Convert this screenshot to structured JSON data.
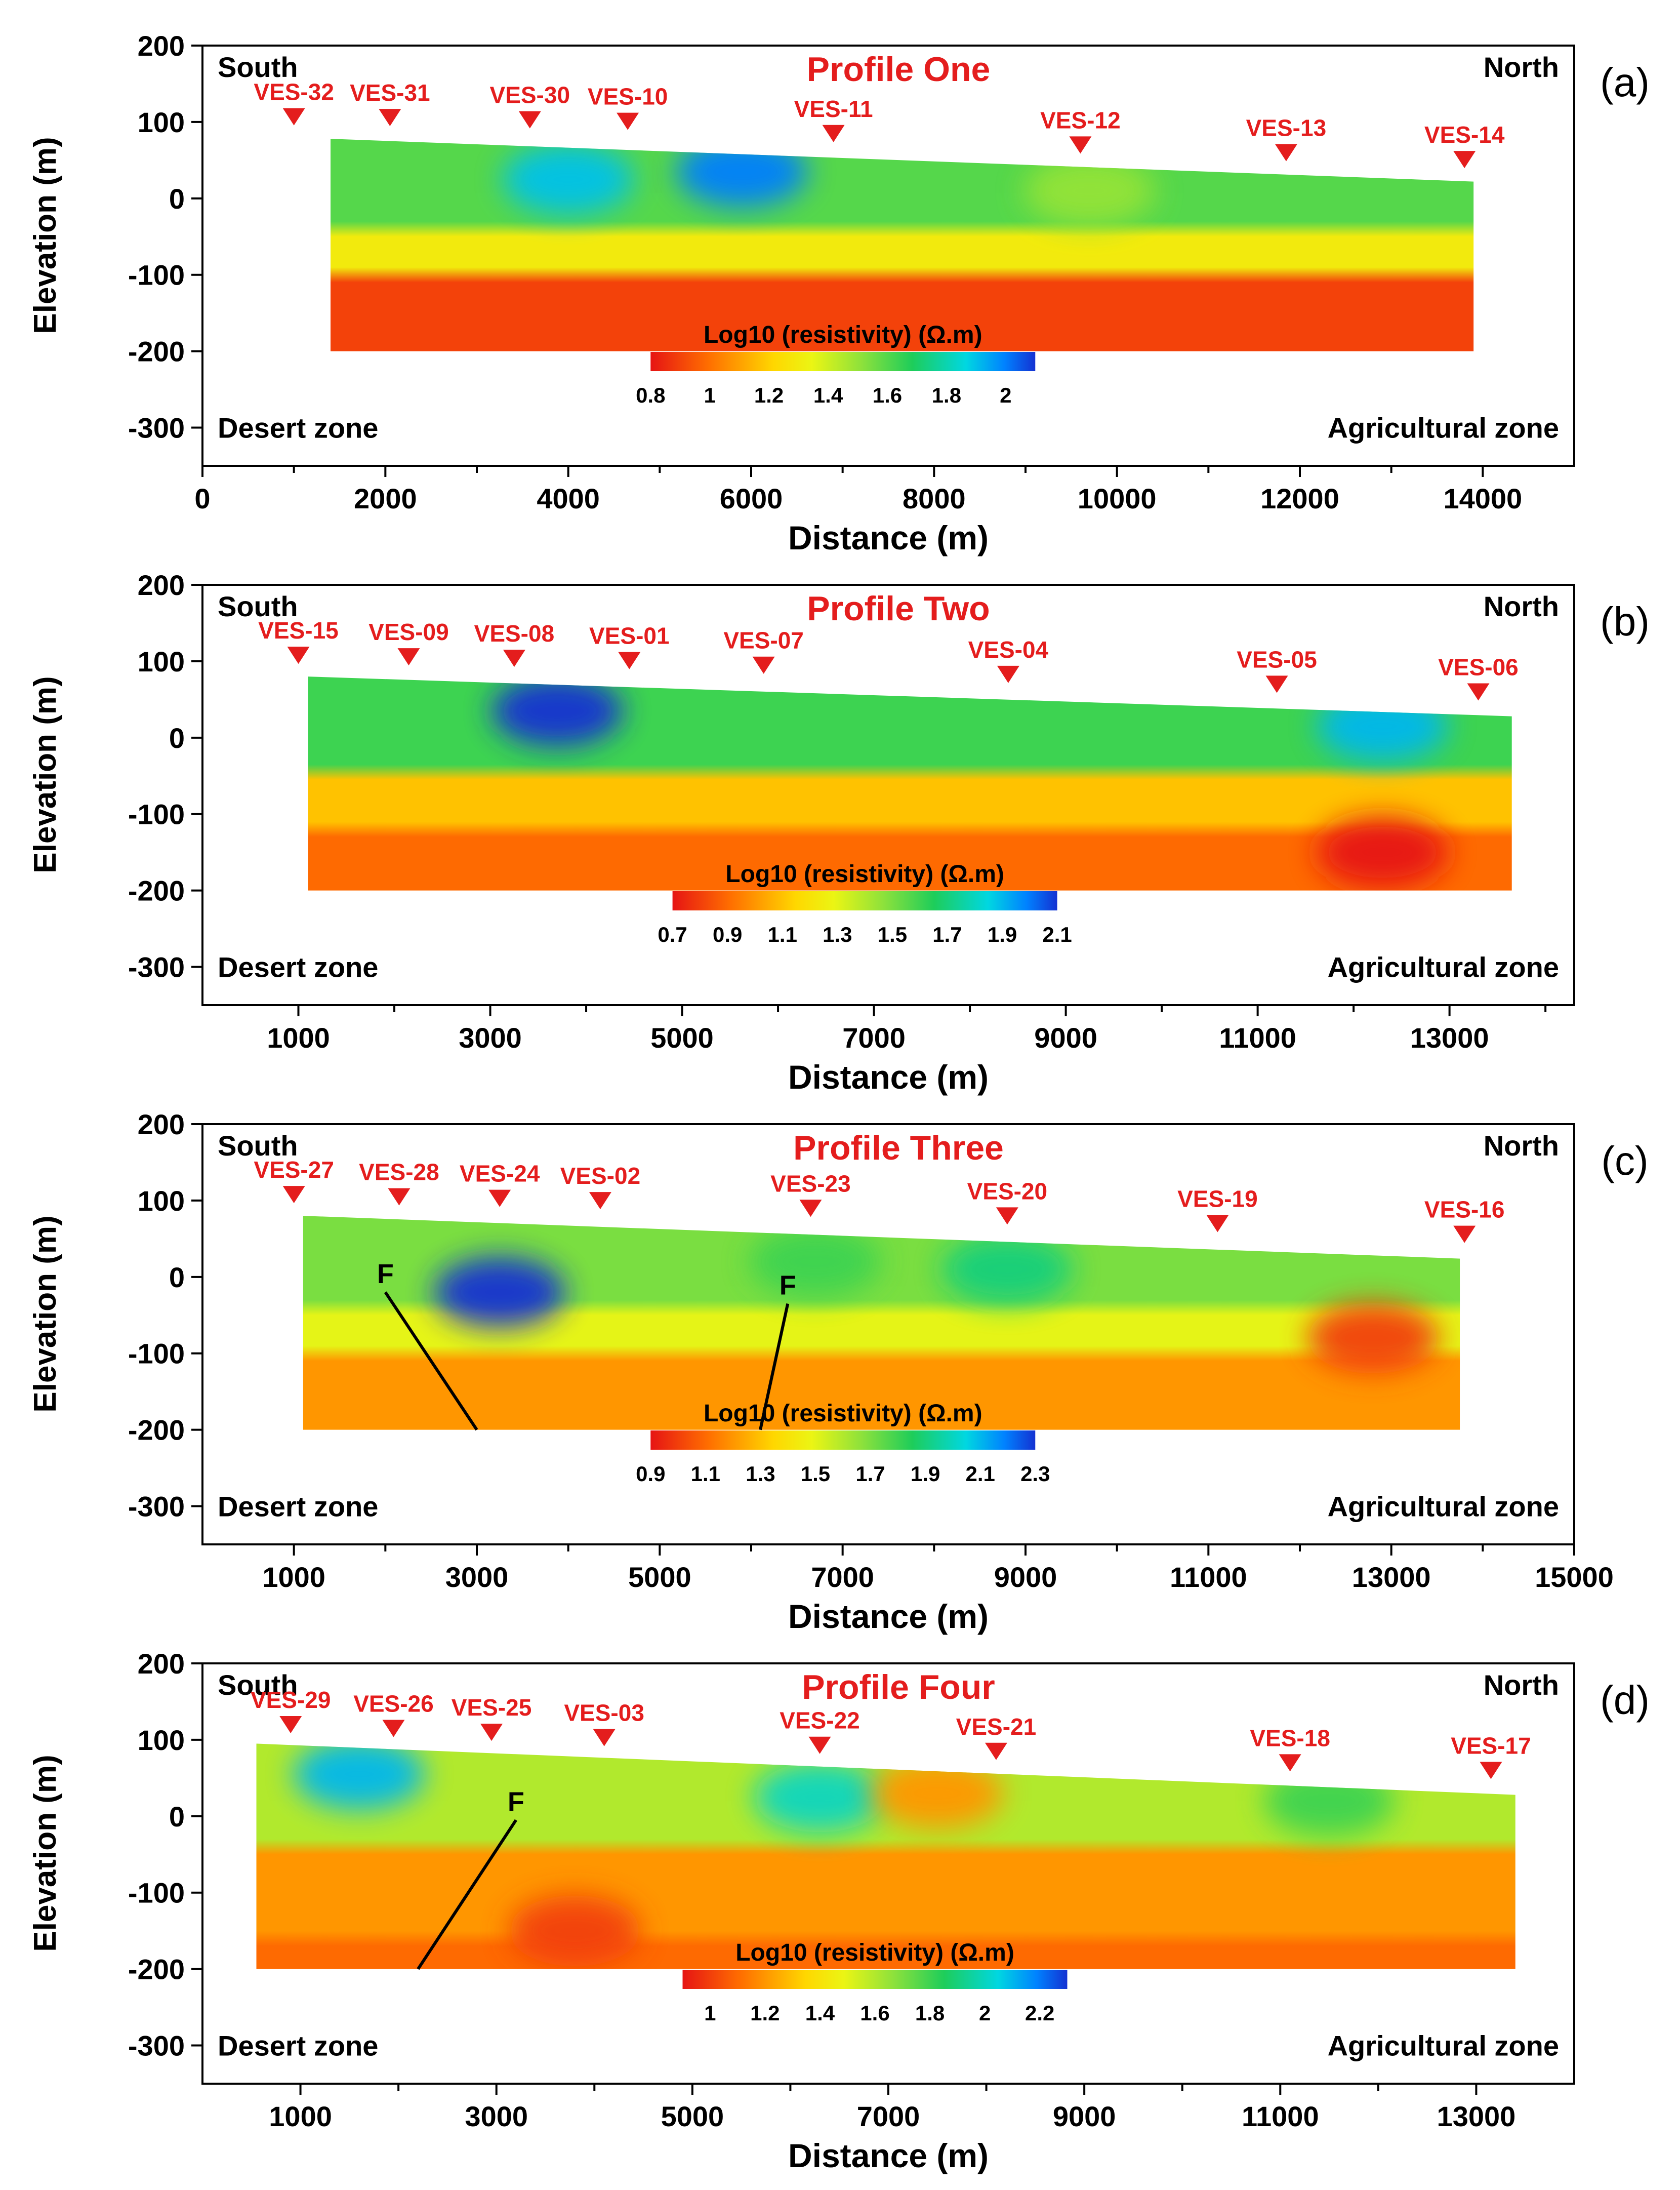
{
  "chart_data": [
    {
      "type": "heatmap",
      "panel_label": "(a)",
      "title": "Profile One",
      "xlabel": "Distance (m)",
      "ylabel": "Elevation (m)",
      "corner_labels": {
        "top_left": "South",
        "top_right": "North",
        "bottom_left": "Desert zone",
        "bottom_right": "Agricultural zone"
      },
      "xlim": [
        0,
        15000
      ],
      "ylim": [
        -350,
        200
      ],
      "x_ticks": [
        0,
        2000,
        4000,
        6000,
        8000,
        10000,
        12000,
        14000
      ],
      "x_tick_labels": [
        "0",
        "2000",
        "4000",
        "6000",
        "8000",
        "10000",
        "12000",
        "14000"
      ],
      "y_ticks": [
        200,
        100,
        0,
        -100,
        -200,
        -300
      ],
      "y_tick_labels": [
        "200",
        "100",
        "0",
        "-100",
        "-200",
        "-300"
      ],
      "section_x_range": [
        1400,
        13900
      ],
      "section_top_start": 78,
      "section_top_end": 22,
      "section_bottom": -200,
      "ves": [
        {
          "name": "VES-32",
          "x": 1000,
          "elev": 79
        },
        {
          "name": "VES-31",
          "x": 2050,
          "elev": 78
        },
        {
          "name": "VES-30",
          "x": 3580,
          "elev": 75
        },
        {
          "name": "VES-10",
          "x": 4650,
          "elev": 73
        },
        {
          "name": "VES-11",
          "x": 6900,
          "elev": 57
        },
        {
          "name": "VES-12",
          "x": 9600,
          "elev": 42
        },
        {
          "name": "VES-13",
          "x": 11850,
          "elev": 32
        },
        {
          "name": "VES-14",
          "x": 13800,
          "elev": 23
        }
      ],
      "layers": [
        {
          "name": "surface",
          "log10_resistivity": 1.6,
          "from": "top",
          "to": -40
        },
        {
          "name": "middle",
          "log10_resistivity": 1.3,
          "from": -40,
          "to": -100
        },
        {
          "name": "deep",
          "log10_resistivity": 0.9,
          "from": -100,
          "to": -200
        }
      ],
      "anomalies": [
        {
          "x": 4000,
          "y": 25,
          "log10_resistivity": 1.9
        },
        {
          "x": 5900,
          "y": 35,
          "log10_resistivity": 2.0
        },
        {
          "x": 9700,
          "y": 10,
          "log10_resistivity": 1.5
        }
      ],
      "faults": [],
      "colorbar": {
        "title": "Log10 (resistivity) (Ω.m)",
        "min": 0.8,
        "max": 2.1,
        "tick_values": [
          0.8,
          1,
          1.2,
          1.4,
          1.6,
          1.8,
          2
        ],
        "tick_labels": [
          "0.8",
          "1",
          "1.2",
          "1.4",
          "1.6",
          "1.8",
          "2"
        ]
      }
    },
    {
      "type": "heatmap",
      "panel_label": "(b)",
      "title": "Profile Two",
      "xlabel": "Distance (m)",
      "ylabel": "Elevation (m)",
      "corner_labels": {
        "top_left": "South",
        "top_right": "North",
        "bottom_left": "Desert zone",
        "bottom_right": "Agricultural zone"
      },
      "xlim": [
        0,
        14300
      ],
      "ylim": [
        -350,
        200
      ],
      "x_ticks": [
        1000,
        3000,
        5000,
        7000,
        9000,
        11000,
        13000
      ],
      "x_tick_labels": [
        "1000",
        "3000",
        "5000",
        "7000",
        "9000",
        "11000",
        "13000"
      ],
      "y_ticks": [
        200,
        100,
        0,
        -100,
        -200,
        -300
      ],
      "y_tick_labels": [
        "200",
        "100",
        "0",
        "-100",
        "-200",
        "-300"
      ],
      "section_x_range": [
        1100,
        13650
      ],
      "section_top_start": 80,
      "section_top_end": 28,
      "section_bottom": -200,
      "ves": [
        {
          "name": "VES-15",
          "x": 1000,
          "elev": 80
        },
        {
          "name": "VES-09",
          "x": 2150,
          "elev": 78
        },
        {
          "name": "VES-08",
          "x": 3250,
          "elev": 76
        },
        {
          "name": "VES-01",
          "x": 4450,
          "elev": 73
        },
        {
          "name": "VES-07",
          "x": 5850,
          "elev": 67
        },
        {
          "name": "VES-04",
          "x": 8400,
          "elev": 55
        },
        {
          "name": "VES-05",
          "x": 11200,
          "elev": 42
        },
        {
          "name": "VES-06",
          "x": 13300,
          "elev": 32
        }
      ],
      "layers": [
        {
          "name": "surface",
          "log10_resistivity": 1.6,
          "from": "top",
          "to": -45
        },
        {
          "name": "middle",
          "log10_resistivity": 1.1,
          "from": -45,
          "to": -120
        },
        {
          "name": "deep",
          "log10_resistivity": 0.9,
          "from": -120,
          "to": -200
        }
      ],
      "anomalies": [
        {
          "x": 3700,
          "y": 35,
          "log10_resistivity": 2.1
        },
        {
          "x": 12300,
          "y": 15,
          "log10_resistivity": 1.9
        },
        {
          "x": 12300,
          "y": -150,
          "log10_resistivity": 0.7
        }
      ],
      "faults": [],
      "colorbar": {
        "title": "Log10 (resistivity) (Ω.m)",
        "min": 0.7,
        "max": 2.1,
        "tick_values": [
          0.7,
          0.9,
          1.1,
          1.3,
          1.5,
          1.7,
          1.9,
          2.1
        ],
        "tick_labels": [
          "0.7",
          "0.9",
          "1.1",
          "1.3",
          "1.5",
          "1.7",
          "1.9",
          "2.1"
        ]
      }
    },
    {
      "type": "heatmap",
      "panel_label": "(c)",
      "title": "Profile Three",
      "xlabel": "Distance (m)",
      "ylabel": "Elevation (m)",
      "corner_labels": {
        "top_left": "South",
        "top_right": "North",
        "bottom_left": "Desert zone",
        "bottom_right": "Agricultural zone"
      },
      "xlim": [
        0,
        15000
      ],
      "ylim": [
        -350,
        200
      ],
      "x_ticks": [
        1000,
        3000,
        5000,
        7000,
        9000,
        11000,
        13000,
        15000
      ],
      "x_tick_labels": [
        "1000",
        "3000",
        "5000",
        "7000",
        "9000",
        "11000",
        "13000",
        "15000"
      ],
      "y_ticks": [
        200,
        100,
        0,
        -100,
        -200,
        -300
      ],
      "y_tick_labels": [
        "200",
        "100",
        "0",
        "-100",
        "-200",
        "-300"
      ],
      "section_x_range": [
        1100,
        13750
      ],
      "section_top_start": 80,
      "section_top_end": 24,
      "section_bottom": -200,
      "ves": [
        {
          "name": "VES-27",
          "x": 1000,
          "elev": 80
        },
        {
          "name": "VES-28",
          "x": 2150,
          "elev": 77
        },
        {
          "name": "VES-24",
          "x": 3250,
          "elev": 75
        },
        {
          "name": "VES-02",
          "x": 4350,
          "elev": 72
        },
        {
          "name": "VES-23",
          "x": 6650,
          "elev": 62
        },
        {
          "name": "VES-20",
          "x": 8800,
          "elev": 52
        },
        {
          "name": "VES-19",
          "x": 11100,
          "elev": 42
        },
        {
          "name": "VES-16",
          "x": 13800,
          "elev": 28
        }
      ],
      "layers": [
        {
          "name": "surface",
          "log10_resistivity": 1.7,
          "from": "top",
          "to": -40
        },
        {
          "name": "middle",
          "log10_resistivity": 1.5,
          "from": -40,
          "to": -100
        },
        {
          "name": "deep",
          "log10_resistivity": 1.2,
          "from": -100,
          "to": -200
        }
      ],
      "anomalies": [
        {
          "x": 3250,
          "y": -20,
          "log10_resistivity": 2.3
        },
        {
          "x": 8800,
          "y": 10,
          "log10_resistivity": 1.9
        },
        {
          "x": 6700,
          "y": 20,
          "log10_resistivity": 1.8
        },
        {
          "x": 12800,
          "y": -80,
          "log10_resistivity": 1.0
        }
      ],
      "faults": [
        {
          "label": "F",
          "from": [
            2000,
            -20
          ],
          "to": [
            3000,
            -200
          ]
        },
        {
          "label": "F",
          "from": [
            6400,
            -35
          ],
          "to": [
            6100,
            -200
          ]
        }
      ],
      "colorbar": {
        "title": "Log10 (resistivity) (Ω.m)",
        "min": 0.9,
        "max": 2.3,
        "tick_values": [
          0.9,
          1.1,
          1.3,
          1.5,
          1.7,
          1.9,
          2.1,
          2.3
        ],
        "tick_labels": [
          "0.9",
          "1.1",
          "1.3",
          "1.5",
          "1.7",
          "1.9",
          "2.1",
          "2.3"
        ]
      }
    },
    {
      "type": "heatmap",
      "panel_label": "(d)",
      "title": "Profile Four",
      "xlabel": "Distance (m)",
      "ylabel": "Elevation (m)",
      "corner_labels": {
        "top_left": "South",
        "top_right": "North",
        "bottom_left": "Desert zone",
        "bottom_right": "Agricultural zone"
      },
      "xlim": [
        0,
        14000
      ],
      "ylim": [
        -350,
        200
      ],
      "x_ticks": [
        1000,
        3000,
        5000,
        7000,
        9000,
        11000,
        13000
      ],
      "x_tick_labels": [
        "1000",
        "3000",
        "5000",
        "7000",
        "9000",
        "11000",
        "13000"
      ],
      "y_ticks": [
        200,
        100,
        0,
        -100,
        -200,
        -300
      ],
      "y_tick_labels": [
        "200",
        "100",
        "0",
        "-100",
        "-200",
        "-300"
      ],
      "section_x_range": [
        550,
        13400
      ],
      "section_top_start": 95,
      "section_top_end": 28,
      "section_bottom": -200,
      "ves": [
        {
          "name": "VES-29",
          "x": 900,
          "elev": 92
        },
        {
          "name": "VES-26",
          "x": 1950,
          "elev": 87
        },
        {
          "name": "VES-25",
          "x": 2950,
          "elev": 82
        },
        {
          "name": "VES-03",
          "x": 4100,
          "elev": 75
        },
        {
          "name": "VES-22",
          "x": 6300,
          "elev": 65
        },
        {
          "name": "VES-21",
          "x": 8100,
          "elev": 57
        },
        {
          "name": "VES-18",
          "x": 11100,
          "elev": 42
        },
        {
          "name": "VES-17",
          "x": 13150,
          "elev": 32
        }
      ],
      "layers": [
        {
          "name": "surface",
          "log10_resistivity": 1.6,
          "from": "top",
          "to": -40
        },
        {
          "name": "middle",
          "log10_resistivity": 1.2,
          "from": -40,
          "to": -160
        },
        {
          "name": "deep",
          "log10_resistivity": 1.1,
          "from": -160,
          "to": -200
        }
      ],
      "anomalies": [
        {
          "x": 1600,
          "y": 55,
          "log10_resistivity": 2.1
        },
        {
          "x": 6300,
          "y": 25,
          "log10_resistivity": 2.0
        },
        {
          "x": 3800,
          "y": -150,
          "log10_resistivity": 1.0
        },
        {
          "x": 7500,
          "y": 30,
          "log10_resistivity": 1.2
        },
        {
          "x": 11500,
          "y": 20,
          "log10_resistivity": 1.8
        }
      ],
      "faults": [
        {
          "label": "F",
          "from": [
            3200,
            -5
          ],
          "to": [
            2200,
            -200
          ]
        }
      ],
      "colorbar": {
        "title": "Log10 (resistivity) (Ω.m)",
        "min": 0.9,
        "max": 2.3,
        "tick_values": [
          1,
          1.2,
          1.4,
          1.6,
          1.8,
          2,
          2.2
        ],
        "tick_labels": [
          "1",
          "1.2",
          "1.4",
          "1.6",
          "1.8",
          "2",
          "2.2"
        ]
      }
    }
  ]
}
